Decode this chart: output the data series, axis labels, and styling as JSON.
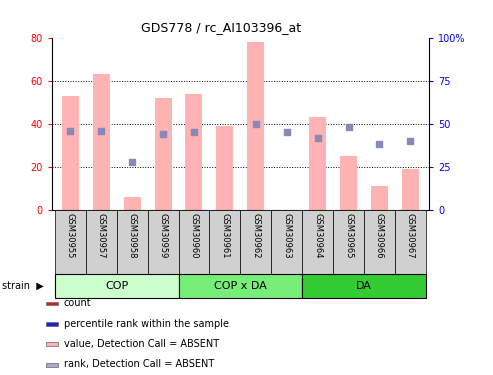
{
  "title": "GDS778 / rc_AI103396_at",
  "samples": [
    "GSM30955",
    "GSM30957",
    "GSM30958",
    "GSM30959",
    "GSM30960",
    "GSM30961",
    "GSM30962",
    "GSM30963",
    "GSM30964",
    "GSM30965",
    "GSM30966",
    "GSM30967"
  ],
  "bar_values": [
    53,
    63,
    6,
    52,
    54,
    39,
    78,
    0,
    43,
    25,
    11,
    19
  ],
  "rank_dots": [
    46,
    46,
    28,
    44,
    45,
    null,
    50,
    45,
    42,
    48,
    38,
    40
  ],
  "ylim_left": [
    0,
    80
  ],
  "ylim_right": [
    0,
    100
  ],
  "yticks_left": [
    0,
    20,
    40,
    60,
    80
  ],
  "yticks_right": [
    0,
    25,
    50,
    75,
    100
  ],
  "ytick_labels_left": [
    "0",
    "20",
    "40",
    "60",
    "80"
  ],
  "ytick_labels_right": [
    "0",
    "25",
    "50",
    "75",
    "100%"
  ],
  "bar_color": "#ffb3b3",
  "dot_color": "#8888bb",
  "strain_groups": [
    {
      "label": "COP",
      "start": 0,
      "end": 3,
      "color": "#ccffcc"
    },
    {
      "label": "COP x DA",
      "start": 4,
      "end": 7,
      "color": "#77ee77"
    },
    {
      "label": "DA",
      "start": 8,
      "end": 11,
      "color": "#33cc33"
    }
  ],
  "legend_items": [
    {
      "color": "#cc2222",
      "label": "count"
    },
    {
      "color": "#2222cc",
      "label": "percentile rank within the sample"
    },
    {
      "color": "#ffb3b3",
      "label": "value, Detection Call = ABSENT"
    },
    {
      "color": "#aaaacc",
      "label": "rank, Detection Call = ABSENT"
    }
  ],
  "dotted_lines": [
    20,
    40,
    60
  ],
  "rank_dot_size": 18
}
